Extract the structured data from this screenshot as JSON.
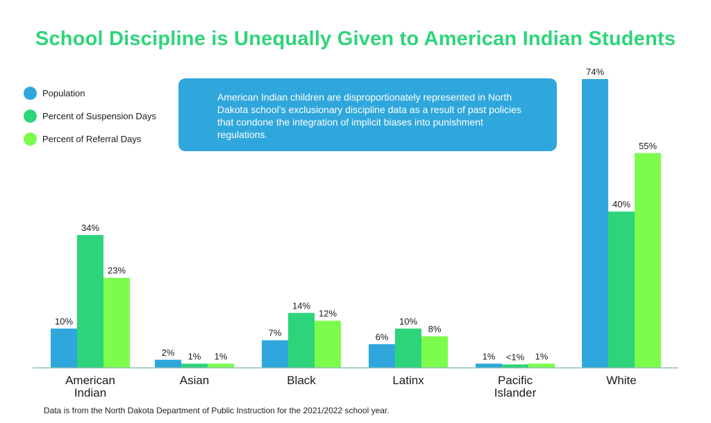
{
  "colors": {
    "title": "#2ed47a",
    "population": "#2fa7dc",
    "suspension": "#2ed47a",
    "referral": "#7dfc4e",
    "callout_bg": "#2fa7dc",
    "axis": "#8bbfb5"
  },
  "chart_data": {
    "type": "bar",
    "title": "School Discipline is Unequally Given to American Indian Students",
    "xlabel": "",
    "ylabel": "",
    "ylim": [
      0,
      74
    ],
    "categories": [
      "American Indian",
      "Asian",
      "Black",
      "Latinx",
      "Pacific Islander",
      "White"
    ],
    "series": [
      {
        "name": "Population",
        "values": [
          10,
          2,
          7,
          6,
          1,
          74
        ],
        "labels": [
          "10%",
          "2%",
          "7%",
          "6%",
          "1%",
          "74%"
        ]
      },
      {
        "name": "Percent of Suspension Days",
        "values": [
          34,
          1,
          14,
          10,
          0.8,
          40
        ],
        "labels": [
          "34%",
          "1%",
          "14%",
          "10%",
          "<1%",
          "40%"
        ]
      },
      {
        "name": "Percent of Referral Days",
        "values": [
          23,
          1,
          12,
          8,
          1,
          55
        ],
        "labels": [
          "23%",
          "1%",
          "12%",
          "8%",
          "1%",
          "55%"
        ]
      }
    ],
    "grid": false,
    "legend_position": "top-left"
  },
  "callout": {
    "text": "American Indian children are disproportionately represented in North Dakota school’s exclusionary discipline data as a result of past policies that condone the integration of implicit biases into punishment regulations."
  },
  "footnote": "Data is from the North Dakota Department of Public Instruction for the 2021/2022 school year."
}
